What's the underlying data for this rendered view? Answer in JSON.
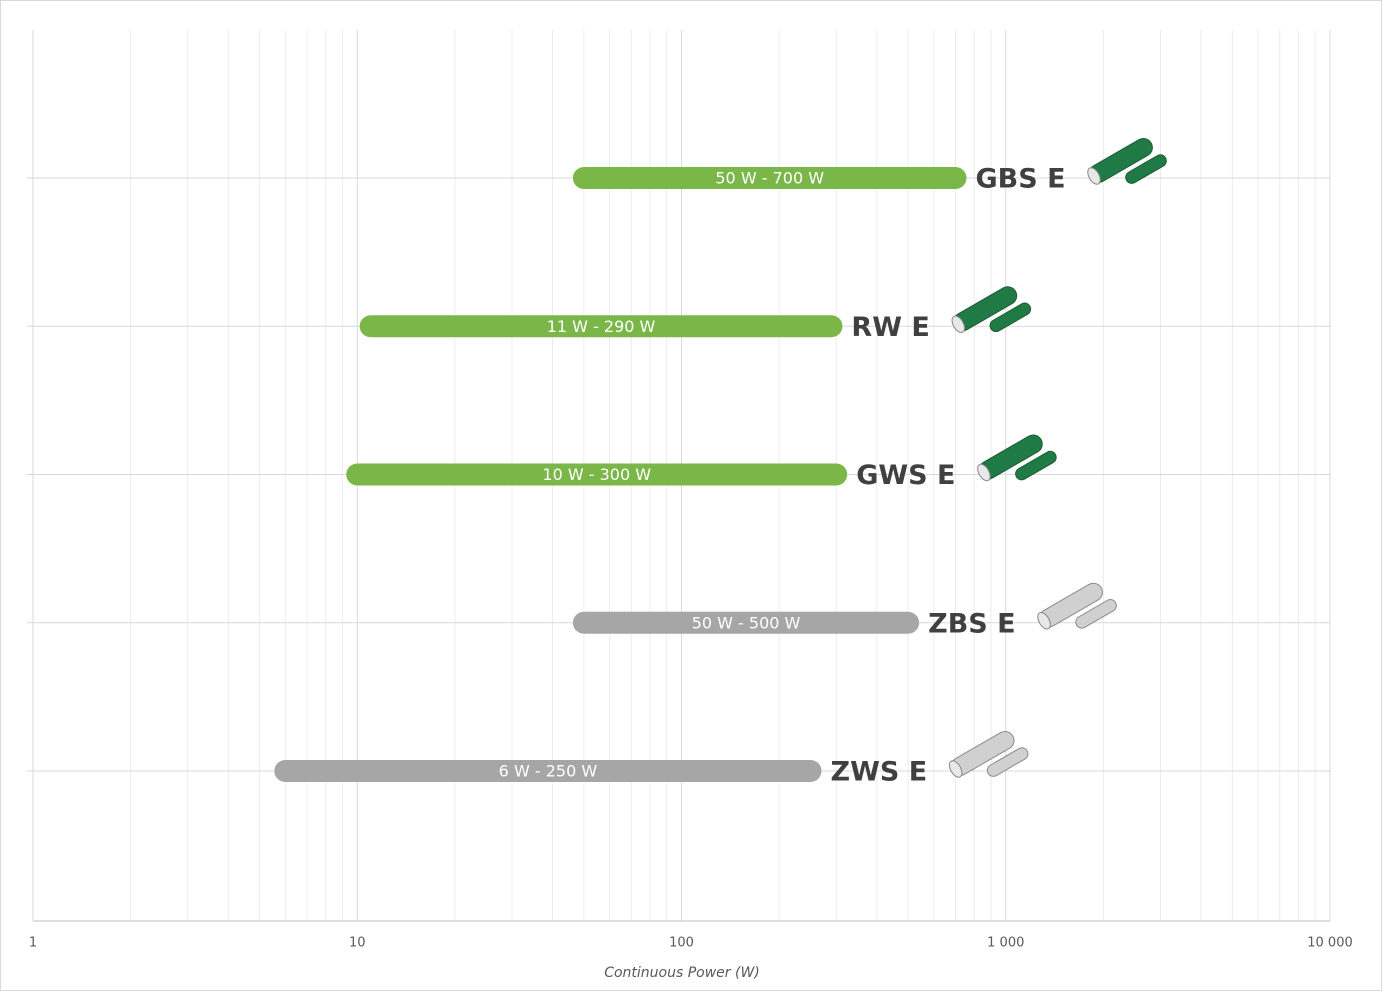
{
  "chart_data": {
    "type": "range-bar",
    "categories": [
      "GBS E",
      "RW E",
      "GWS E",
      "ZBS E",
      "ZWS E"
    ],
    "low": [
      50,
      11,
      10,
      50,
      6
    ],
    "high": [
      700,
      290,
      300,
      500,
      250
    ],
    "value_labels": [
      "50 W - 700 W",
      "11 W - 290 W",
      "10 W - 300 W",
      "50 W - 500 W",
      "6 W - 250 W"
    ],
    "colors": [
      "#7ab648",
      "#7ab648",
      "#7ab648",
      "#a6a6a6",
      "#a6a6a6"
    ],
    "xlim": [
      1,
      10000
    ],
    "xscale": "log",
    "xticks": [
      1,
      10,
      100,
      {
        "value": 1000,
        "label": "1 000"
      },
      {
        "value": 10000,
        "label": "10 000"
      }
    ],
    "xlabel": "Continuous Power (W)",
    "grid": true
  }
}
